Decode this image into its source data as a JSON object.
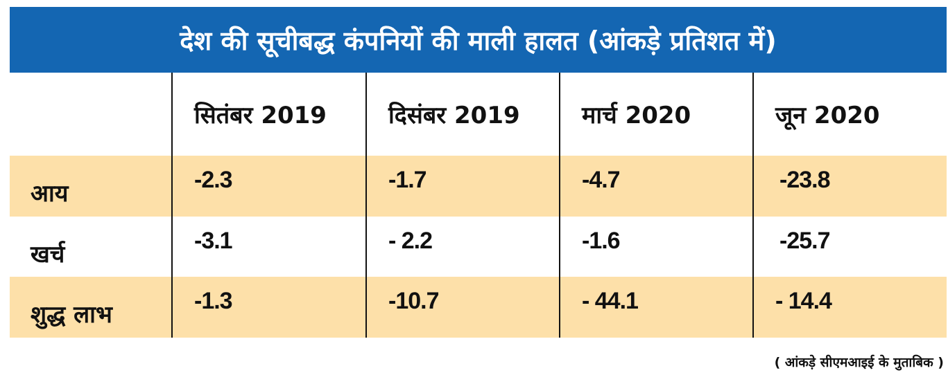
{
  "colors": {
    "header_bg": "#1466b2",
    "band": "#fde0a9",
    "text": "#111111"
  },
  "chart_data": {
    "type": "table",
    "title": "देश की सूचीबद्ध कंपनियों की माली हालत (आंकड़े प्रतिशत में)",
    "columns": [
      "सितंबर 2019",
      "दिसंबर 2019",
      "मार्च 2020",
      "जून 2020"
    ],
    "rows": [
      {
        "label": "आय",
        "values": [
          "-2.3",
          "-1.7",
          "-4.7",
          "-23.8"
        ]
      },
      {
        "label": "खर्च",
        "values": [
          "-3.1",
          "- 2.2",
          "-1.6",
          "-25.7"
        ]
      },
      {
        "label": "शुद्ध लाभ",
        "values": [
          "-1.3",
          "-10.7",
          "- 44.1",
          "- 14.4"
        ]
      }
    ],
    "note": "( आंकड़े सीएमआइई के मुताबिक )"
  }
}
